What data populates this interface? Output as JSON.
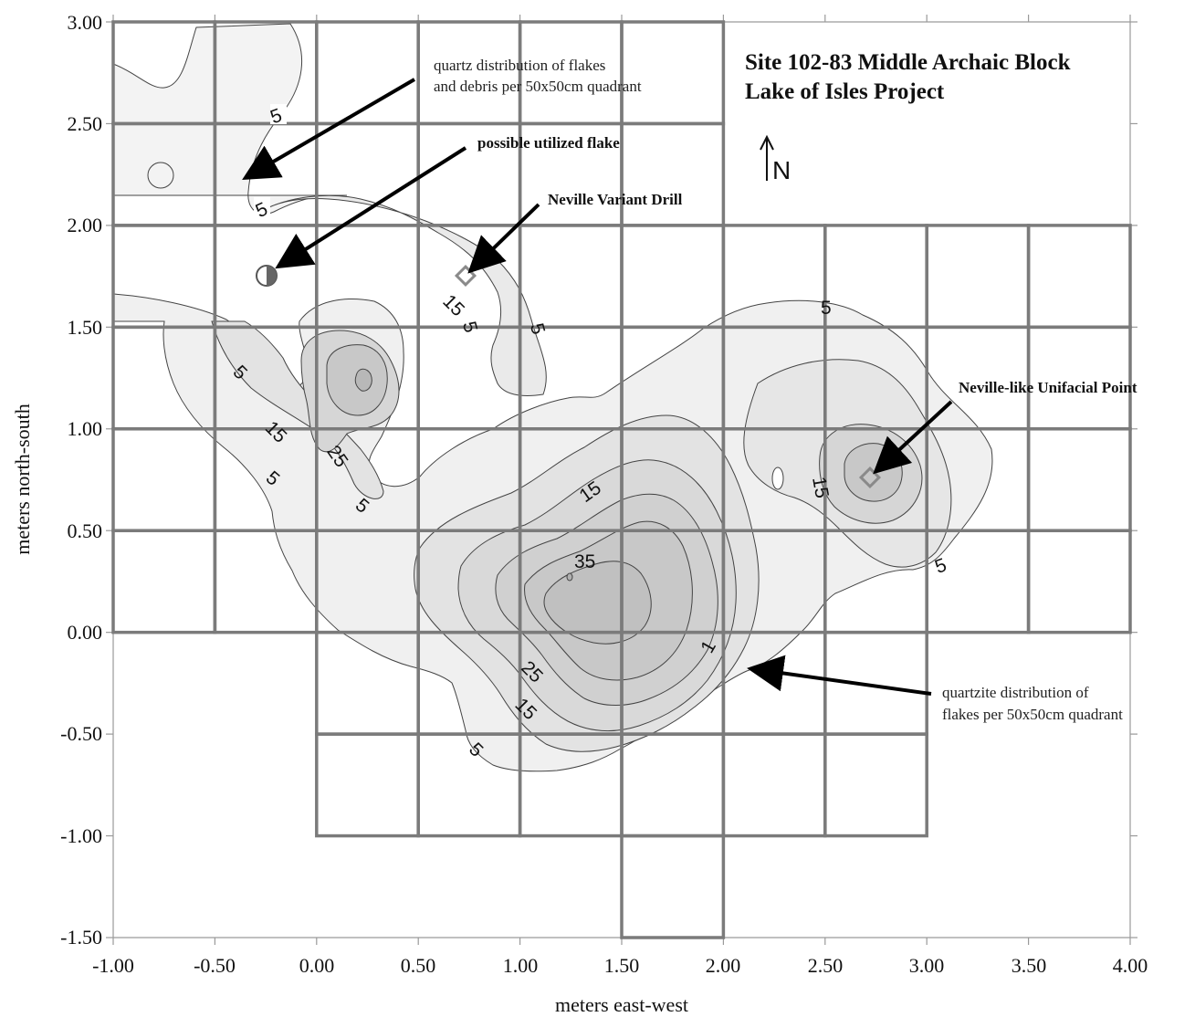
{
  "title": {
    "line1": "Site 102-83 Middle Archaic Block",
    "line2": "Lake of Isles Project"
  },
  "north_arrow": {
    "label": "N"
  },
  "axes": {
    "x": {
      "label": "meters east-west",
      "range": [
        -1.0,
        4.0
      ],
      "ticks": [
        "-1.00",
        "-0.50",
        "0.00",
        "0.50",
        "1.00",
        "1.50",
        "2.00",
        "2.50",
        "3.00",
        "3.50",
        "4.00"
      ]
    },
    "y": {
      "label": "meters north-south",
      "range": [
        -1.5,
        3.0
      ],
      "ticks": [
        "3.00",
        "2.50",
        "2.00",
        "1.50",
        "1.00",
        "0.50",
        "0.00",
        "-0.50",
        "-1.00",
        "-1.50"
      ]
    }
  },
  "annotations": {
    "quartz": {
      "line1": "quartz distribution of flakes",
      "line2": "and debris per 50x50cm quadrant"
    },
    "utilized_flake": {
      "label": "possible utilized flake"
    },
    "drill": {
      "label": "Neville Variant Drill"
    },
    "unifacial_point": {
      "label": "Neville-like Unifacial Point"
    },
    "quartzite": {
      "line1": "quartzite distribution of",
      "line2": "flakes per 50x50cm quadrant"
    }
  },
  "contour_labels": [
    "5",
    "5",
    "5",
    "15",
    "5",
    "5",
    "5",
    "15",
    "25",
    "5",
    "5",
    "15",
    "35",
    "1",
    "25",
    "15",
    "5",
    "5",
    "15",
    "5"
  ],
  "excavation_units": {
    "unit_size_m": 0.5,
    "cells": [
      [
        -1.0,
        2.5
      ],
      [
        -0.5,
        2.5
      ],
      [
        0.0,
        2.5
      ],
      [
        0.5,
        2.5
      ],
      [
        1.0,
        2.5
      ],
      [
        1.5,
        2.5
      ],
      [
        -1.0,
        2.0
      ],
      [
        -0.5,
        2.0
      ],
      [
        0.0,
        2.0
      ],
      [
        0.5,
        2.0
      ],
      [
        1.0,
        2.0
      ],
      [
        1.5,
        2.0
      ],
      [
        -1.0,
        1.5
      ],
      [
        -0.5,
        1.5
      ],
      [
        0.0,
        1.5
      ],
      [
        0.5,
        1.5
      ],
      [
        1.0,
        1.5
      ],
      [
        1.5,
        1.5
      ],
      [
        2.0,
        1.5
      ],
      [
        2.5,
        1.5
      ],
      [
        3.0,
        1.5
      ],
      [
        3.5,
        1.5
      ],
      [
        -1.0,
        1.0
      ],
      [
        -0.5,
        1.0
      ],
      [
        0.0,
        1.0
      ],
      [
        0.5,
        1.0
      ],
      [
        1.0,
        1.0
      ],
      [
        1.5,
        1.0
      ],
      [
        2.0,
        1.0
      ],
      [
        2.5,
        1.0
      ],
      [
        3.0,
        1.0
      ],
      [
        3.5,
        1.0
      ],
      [
        -1.0,
        0.5
      ],
      [
        -0.5,
        0.5
      ],
      [
        0.0,
        0.5
      ],
      [
        0.5,
        0.5
      ],
      [
        1.0,
        0.5
      ],
      [
        1.5,
        0.5
      ],
      [
        2.0,
        0.5
      ],
      [
        2.5,
        0.5
      ],
      [
        3.0,
        0.5
      ],
      [
        3.5,
        0.5
      ],
      [
        -1.0,
        0.0
      ],
      [
        -0.5,
        0.0
      ],
      [
        0.0,
        0.0
      ],
      [
        0.5,
        0.0
      ],
      [
        1.0,
        0.0
      ],
      [
        1.5,
        0.0
      ],
      [
        2.0,
        0.0
      ],
      [
        2.5,
        0.0
      ],
      [
        3.0,
        0.0
      ],
      [
        3.5,
        0.0
      ],
      [
        0.0,
        -0.5
      ],
      [
        0.5,
        -0.5
      ],
      [
        1.0,
        -0.5
      ],
      [
        1.5,
        -0.5
      ],
      [
        2.0,
        -0.5
      ],
      [
        2.5,
        -0.5
      ],
      [
        0.0,
        -1.0
      ],
      [
        0.5,
        -1.0
      ],
      [
        1.0,
        -1.0
      ],
      [
        1.5,
        -1.0
      ],
      [
        2.0,
        -1.0
      ],
      [
        2.5,
        -1.0
      ],
      [
        1.5,
        -1.5
      ]
    ]
  },
  "artifacts": [
    {
      "name": "possible utilized flake",
      "symbol": "half-filled circle",
      "x": -0.23,
      "y": 1.75
    },
    {
      "name": "Neville Variant Drill",
      "symbol": "diamond",
      "x": 0.73,
      "y": 1.75
    },
    {
      "name": "Neville-like Unifacial Point",
      "symbol": "diamond",
      "x": 2.73,
      "y": 0.76
    }
  ],
  "colors": {
    "grid": "#7b7b7b",
    "contour_line": "#444444",
    "shade_light": "#efefef",
    "shade_mid": "#e3e3e3",
    "shade_dark": "#d4d4d4",
    "shade_darker": "#c7c7c7",
    "marker": "#8a8a8a"
  }
}
